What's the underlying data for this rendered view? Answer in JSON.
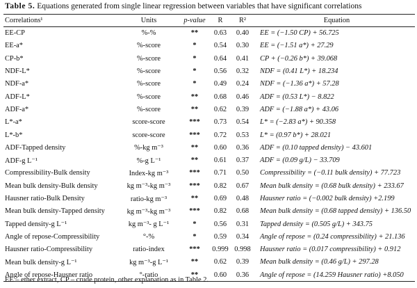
{
  "caption": {
    "label": "Table 5.",
    "text": "Equations generated from single linear regression between variables that have significant correlations"
  },
  "headers": {
    "correlations": "Correlations¹",
    "units": "Units",
    "p_value": "p-value",
    "r": "R",
    "r2": "R²",
    "equation": "Equation"
  },
  "rows": [
    {
      "correlation": "EE-CP",
      "units": "%-%",
      "p": "**",
      "r": "0.63",
      "r2": "0.40",
      "equation": "EE = (−1.50 CP) + 56.725"
    },
    {
      "correlation": "EE-a*",
      "units": "%-score",
      "p": "*",
      "r": "0.54",
      "r2": "0.30",
      "equation": "EE = (−1.51 a*) + 27.29"
    },
    {
      "correlation": "CP-b*",
      "units": "%-score",
      "p": "*",
      "r": "0.64",
      "r2": "0.41",
      "equation": "CP + (−0.26 b*) + 39.068"
    },
    {
      "correlation": "NDF-L*",
      "units": "%-score",
      "p": "*",
      "r": "0.56",
      "r2": "0.32",
      "equation": "NDF = (0.41 L*) + 18.234"
    },
    {
      "correlation": "NDF-a*",
      "units": "%-score",
      "p": "*",
      "r": "0.49",
      "r2": "0.24",
      "equation": "NDF = (−1.36 a*) + 57.28"
    },
    {
      "correlation": "ADF-L*",
      "units": "%-score",
      "p": "**",
      "r": "0.68",
      "r2": "0.46",
      "equation": "ADF = (0.53 L*) − 8.822"
    },
    {
      "correlation": "ADF-a*",
      "units": "%-score",
      "p": "**",
      "r": "0.62",
      "r2": "0.39",
      "equation": "ADF = (−1.88 a*) + 43.06"
    },
    {
      "correlation": "L*-a*",
      "units": "score-score",
      "p": "***",
      "r": "0.73",
      "r2": "0.54",
      "equation": "L* = (−2.83 a*) + 90.358"
    },
    {
      "correlation": "L*-b*",
      "units": "score-score",
      "p": "***",
      "r": "0.72",
      "r2": "0.53",
      "equation": "L* = (0.97 b*) + 28.021"
    },
    {
      "correlation": "ADF-Tapped density",
      "units": "%-kg m⁻³",
      "p": "**",
      "r": "0.60",
      "r2": "0.36",
      "equation": "ADF = (0.10 tapped density) − 43.601"
    },
    {
      "correlation": "ADF-g L⁻¹",
      "units": "%-g L⁻¹",
      "p": "**",
      "r": "0.61",
      "r2": "0.37",
      "equation": "ADF = (0.09 g/L) − 33.709"
    },
    {
      "correlation": "Compressibility-Bulk density",
      "units": "Index-kg m⁻³",
      "p": "***",
      "r": "0.71",
      "r2": "0.50",
      "equation": "Compressibility = (−0.11 bulk density) + 77.723"
    },
    {
      "correlation": "Mean bulk density-Bulk density",
      "units": "kg m⁻³-kg m⁻³",
      "p": "***",
      "r": "0.82",
      "r2": "0.67",
      "equation": "Mean bulk density = (0.68 bulk density) + 233.67"
    },
    {
      "correlation": "Hausner ratio-Bulk Density",
      "units": "ratio-kg m⁻³",
      "p": "**",
      "r": "0.69",
      "r2": "0.48",
      "equation": "Hausner ratio = (−0.002 bulk density) +2.199"
    },
    {
      "correlation": "Mean bulk density-Tapped density",
      "units": "kg m⁻³-kg m⁻³",
      "p": "***",
      "r": "0.82",
      "r2": "0.68",
      "equation": "Mean bulk density = (0.68 tapped density) + 136.50"
    },
    {
      "correlation": "Tapped density-g L⁻¹",
      "units": "kg m⁻³- g L⁻¹",
      "p": "*",
      "r": "0.56",
      "r2": "0.31",
      "equation": "Tapped density = (0.505 g/L) + 343.75"
    },
    {
      "correlation": "Angle of repose-Compressibility",
      "units": "°-%",
      "p": "*",
      "r": "0.59",
      "r2": "0.34",
      "equation": "Angle of repose = (0.24 compressibility) + 21.136"
    },
    {
      "correlation": "Hausner ratio-Compressibility",
      "units": "ratio-index",
      "p": "***",
      "r": "0.999",
      "r2": "0.998",
      "equation": "Hausner ratio = (0.017 compressibility) + 0.912"
    },
    {
      "correlation": "Mean bulk density-g L⁻¹",
      "units": "kg m⁻³-g L⁻¹",
      "p": "**",
      "r": "0.62",
      "r2": "0.39",
      "equation": "Mean bulk density = (0.46 g/L) + 297.28"
    },
    {
      "correlation": "Angle of repose-Hausner ratio",
      "units": "°-ratio",
      "p": "**",
      "r": "0.60",
      "r2": "0.36",
      "equation": "Angle of repose = (14.259 Hausner ratio) +8.050"
    }
  ],
  "footnote": "EE – ether extract, CP – crude protein, other explanation as in Table 2."
}
